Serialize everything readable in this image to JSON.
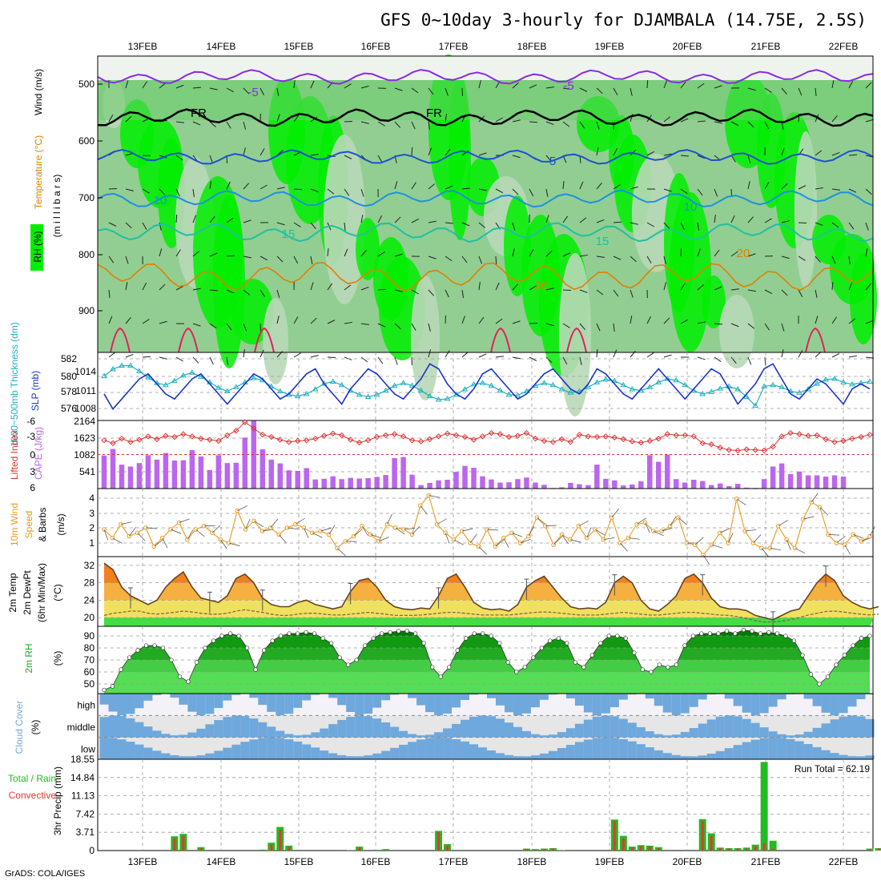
{
  "title": "GFS 0~10day 3-hourly for DJAMBALA (14.75E, 2.5S)",
  "credit": "GrADS: COLA/IGES",
  "x_labels": [
    "13FEB",
    "14FEB",
    "15FEB",
    "16FEB",
    "17FEB",
    "18FEB",
    "19FEB",
    "20FEB",
    "21FEB",
    "22FEB"
  ],
  "colors": {
    "rh_bright": "#00ee00",
    "rh_mid": "#66cc66",
    "rh_light": "#b8d8b8",
    "rh_grey": "#c8d0c8",
    "t_minus5": "#8a2be2",
    "t_zero": "#000000",
    "t_5": "#1e50d0",
    "t_10": "#1e90e0",
    "t_15": "#20c0a0",
    "t_20": "#e08000",
    "t_25": "#e02060",
    "thickness": "#20b0c0",
    "slp": "#1a33cc",
    "lifted_index": "#dd3333",
    "cape": "#bb66ee",
    "wind": "#e89a20",
    "temp_fill": "#f0e060",
    "temp_hot": "#f08020",
    "dewpt": "#886644",
    "rh_surface": "#22aa22",
    "cloud": "#6fa8dc",
    "cloud_bg": "#e6e6e6",
    "precip_total": "#22bb22",
    "precip_conv": "#ee3333"
  },
  "panels": {
    "upper_air": {
      "ylabels": [
        "Wind (m/s)",
        "Temperature (°C)",
        "RH (%)",
        "(m i l l i b a r s)"
      ],
      "yticks": [
        "500",
        "600",
        "700",
        "800",
        "900"
      ],
      "contour_labels": [
        "-5",
        "FR",
        "FR",
        "-5",
        "5",
        "10",
        "10",
        "15",
        "15",
        "20",
        "20"
      ]
    },
    "slp": {
      "ylabels": [
        "1000~500mb Thickness (dm)",
        "SLP (mb)"
      ],
      "left_ticks": [
        "582",
        "580",
        "578",
        "576"
      ],
      "right_ticks": [
        "1014",
        "1011",
        "1008"
      ]
    },
    "cape": {
      "ylabels": [
        "Lifted Index",
        "CAPE (J/kg)"
      ],
      "left_ticks": [
        "-6",
        "-3",
        "0",
        "3",
        "6"
      ],
      "right_ticks": [
        "2164",
        "1623",
        "1082",
        "541"
      ]
    },
    "wind": {
      "ylabels": [
        "10m Wind",
        "Speed",
        "& Barbs",
        "(m/s)"
      ],
      "ticks": [
        "4",
        "3",
        "2",
        "1"
      ]
    },
    "temp": {
      "ylabels": [
        "2m Temp",
        "2m DewPt",
        "(6hr Min/Max)",
        "(°C)"
      ],
      "ticks": [
        "32",
        "28",
        "24",
        "20"
      ]
    },
    "rh": {
      "ylabels": [
        "2m RH",
        "(%)"
      ],
      "ticks": [
        "90",
        "80",
        "70",
        "60",
        "50"
      ]
    },
    "cloud": {
      "ylabels": [
        "Cloud Cover",
        "(%)"
      ],
      "levels": [
        "high",
        "middle",
        "low"
      ]
    },
    "precip": {
      "ylabels": [
        "Total / Rain",
        "Convective",
        "3hr Precip (mm)"
      ],
      "ticks": [
        "18.55",
        "14.84",
        "11.13",
        "7.42",
        "3.71",
        "0"
      ],
      "run_total": "Run Total = 62.19"
    }
  },
  "chart_data": {
    "type": "meteogram",
    "title": "GFS 0~10day 3-hourly for DJAMBALA (14.75E, 2.5S)",
    "x_start": "12FEB 12Z",
    "x_step_hours": 3,
    "series": [
      {
        "name": "SLP",
        "unit": "mb",
        "ylim": [
          1006,
          1017
        ],
        "values": [
          1010,
          1007,
          1009,
          1011,
          1013,
          1014,
          1012,
          1010,
          1009,
          1011,
          1013,
          1014,
          1012,
          1010,
          1008,
          1010,
          1012,
          1014,
          1013,
          1011,
          1009,
          1010,
          1012,
          1014,
          1015,
          1012,
          1010,
          1008,
          1011,
          1013,
          1015,
          1014,
          1012,
          1010,
          1009,
          1011,
          1013,
          1016,
          1015,
          1012,
          1010,
          1009,
          1011,
          1014,
          1015,
          1013,
          1011,
          1009,
          1010,
          1012,
          1014,
          1015,
          1013,
          1011,
          1010,
          1012,
          1015,
          1014,
          1012,
          1010,
          1009,
          1011,
          1013,
          1015,
          1013,
          1011,
          1009,
          1011,
          1013,
          1015,
          1014,
          1011,
          1008,
          1010,
          1012,
          1015,
          1016,
          1013,
          1010,
          1009,
          1011,
          1013,
          1012,
          1010,
          1008,
          1011,
          1012,
          1011
        ]
      },
      {
        "name": "1000~500mb Thickness",
        "unit": "dm",
        "ylim": [
          575,
          583
        ],
        "values": [
          580.5,
          581.5,
          582,
          582,
          581.2,
          580.3,
          579.5,
          579.2,
          579.8,
          580.6,
          581,
          580.4,
          579.6,
          578.8,
          578.3,
          578.9,
          579.6,
          580.2,
          579.9,
          579,
          578.3,
          577.8,
          577.6,
          577.9,
          578.6,
          579.4,
          579.7,
          579.2,
          578.4,
          577.8,
          577.5,
          577.8,
          578.4,
          579.1,
          579.5,
          579.1,
          578.4,
          577.6,
          577.1,
          577.2,
          577.8,
          578.6,
          579.3,
          579.5,
          579.1,
          578.4,
          577.8,
          577.7,
          578.3,
          579.1,
          579.5,
          579.2,
          578.6,
          578.1,
          578.3,
          578.9,
          579.6,
          580,
          579.8,
          579.2,
          578.6,
          578.4,
          578.9,
          579.6,
          580.1,
          579.9,
          579.2,
          578.4,
          577.9,
          578.2,
          578.7,
          579,
          578.6,
          577.5,
          576.2,
          579,
          579.2,
          578.9,
          578.3,
          578.1,
          578.6,
          579.4,
          580,
          580.1,
          579.6,
          579.3,
          579.5,
          579.7
        ]
      },
      {
        "name": "Lifted Index",
        "unit": "K",
        "ylim": [
          6,
          -6
        ],
        "values": [
          -2.5,
          -2,
          -2.8,
          -2.2,
          -2.6,
          -3.2,
          -2.7,
          -3.3,
          -3.1,
          -3.6,
          -3.2,
          -2.8,
          -2.6,
          -2.4,
          -3.4,
          -4.2,
          -5.7,
          -4.6,
          -3.5,
          -3.1,
          -2.6,
          -2.2,
          -2.4,
          -2.5,
          -2.8,
          -3.3,
          -3.7,
          -3.4,
          -2.6,
          -2.1,
          -2.5,
          -3.1,
          -3.4,
          -3.6,
          -3.2,
          -2.5,
          -2.3,
          -2.7,
          -3.2,
          -3.7,
          -3.4,
          -3.1,
          -2.6,
          -3.2,
          -3.8,
          -3.6,
          -3.1,
          -3.3,
          -3.8,
          -2.8,
          -2.4,
          -2.2,
          -2.7,
          -2.2,
          -3.5,
          -3.2,
          -3.1,
          -3.2,
          -3,
          -2.7,
          -2.3,
          -2.1,
          -2.4,
          -2.8,
          -3.6,
          -3.4,
          -3.4,
          -3.2,
          -2,
          -1.8,
          -1.2,
          -0.8,
          -0.7,
          -0.9,
          -0.8,
          -0.7,
          -1.4,
          -3.2,
          -3.8,
          -3.6,
          -3.3,
          -3.4,
          -2.7,
          -2.2,
          -2.4,
          -2.8,
          -3.1,
          -3.5
        ]
      },
      {
        "name": "CAPE",
        "unit": "J/kg",
        "ylim": [
          0,
          2164
        ],
        "values": [
          1050,
          1260,
          760,
          700,
          810,
          1060,
          920,
          1130,
          890,
          900,
          1220,
          1020,
          590,
          1060,
          810,
          820,
          1620,
          2150,
          1250,
          920,
          800,
          580,
          560,
          650,
          290,
          310,
          390,
          300,
          340,
          320,
          330,
          370,
          430,
          970,
          1000,
          440,
          110,
          180,
          260,
          280,
          530,
          720,
          660,
          390,
          290,
          190,
          200,
          300,
          350,
          190,
          120,
          20,
          40,
          180,
          140,
          110,
          760,
          310,
          260,
          100,
          130,
          230,
          1060,
          850,
          1080,
          300,
          190,
          280,
          240,
          110,
          160,
          80,
          150,
          30,
          20,
          300,
          700,
          800,
          460,
          540,
          420,
          420,
          380,
          420,
          380
        ]
      },
      {
        "name": "10m Wind Speed",
        "unit": "m/s",
        "ylim": [
          0.5,
          4.5
        ],
        "values": [
          2.1,
          1.6,
          2.4,
          1.7,
          1.9,
          2.2,
          1.1,
          1.6,
          2.1,
          2.5,
          1.5,
          2.1,
          2.3,
          1.9,
          1.5,
          1.3,
          3.2,
          2.1,
          2.6,
          2.0,
          2.2,
          1.8,
          2.2,
          2.4,
          2.2,
          1.9,
          2.0,
          1.8,
          1.0,
          1.4,
          1.7,
          2.3,
          1.8,
          1.4,
          2.4,
          2.2,
          2.1,
          1.8,
          3.5,
          4.1,
          2.4,
          1.9,
          1.5,
          2.0,
          1.3,
          1.1,
          2.1,
          1.1,
          1.6,
          1.9,
          1.3,
          1.7,
          2.8,
          2.3,
          1.2,
          1.8,
          1.5,
          2.3,
          1.6,
          2.1,
          1.5,
          2.8,
          1.3,
          1.6,
          2.4,
          2.5,
          2.0,
          2.0,
          2.3,
          2.8,
          1.3,
          1.2,
          0.6,
          1.2,
          1.9,
          1.3,
          3.9,
          2.0,
          1.3,
          1.0,
          1.0,
          2.3,
          1.5,
          1.0,
          2.7,
          3.7,
          3.4,
          1.8,
          1.3,
          1.2,
          1.8,
          1.4,
          1.7
        ]
      },
      {
        "name": "2m Temp",
        "unit": "°C",
        "ylim": [
          18,
          34
        ],
        "values": [
          32.5,
          31,
          27,
          25,
          24,
          23,
          24,
          27,
          29,
          30.5,
          27,
          24.5,
          24,
          23.5,
          25,
          29,
          30,
          28,
          24.5,
          23,
          22.5,
          22.5,
          23.5,
          24,
          23,
          22.5,
          22,
          22.5,
          26,
          28.5,
          29,
          27,
          24,
          22.5,
          22,
          21.8,
          22.2,
          22,
          25,
          29,
          30,
          27,
          23.5,
          22.2,
          21.8,
          22,
          21.5,
          23,
          27,
          28.5,
          29.5,
          27,
          24.5,
          22.5,
          22,
          22.2,
          22,
          23.5,
          28,
          29.5,
          28,
          24,
          22,
          21.5,
          23,
          25,
          29,
          30,
          28,
          24.5,
          22.5,
          22,
          22,
          21.6,
          20.5,
          20,
          19.5,
          20.5,
          21.5,
          22,
          25,
          28,
          30,
          28.5,
          25,
          23.5,
          22.5,
          22,
          22.5
        ]
      },
      {
        "name": "2m DewPt",
        "unit": "°C",
        "ylim": [
          18,
          34
        ],
        "values": [
          20.5,
          21,
          21.2,
          21.5,
          21.5,
          21,
          20.8,
          21,
          21.2,
          21.5,
          21.3,
          21,
          20.8,
          20.8,
          21,
          21.5,
          21.8,
          21.5,
          21.2,
          20.8,
          20.5,
          20.5,
          20.8,
          21,
          21,
          20.8,
          20.6,
          20.6,
          20.8,
          21,
          21.2,
          21,
          20.8,
          20.5,
          20.5,
          20.5,
          20.6,
          20.8,
          21,
          21.2,
          21.2,
          21,
          20.8,
          20.6,
          20.6,
          20.6,
          20.6,
          20.8,
          21,
          21.2,
          21.3,
          21.2,
          21,
          20.8,
          20.6,
          20.6,
          20.6,
          20.8,
          21,
          21.2,
          21,
          20.8,
          20.6,
          20.6,
          20.8,
          21,
          21.2,
          21.2,
          21,
          20.8,
          20.6,
          20.5,
          20.2,
          19.8,
          19.3,
          19,
          19,
          19.2,
          19.5,
          20,
          20.6,
          21,
          21.4,
          21.5,
          21.3,
          21,
          20.8,
          20.6,
          20.8
        ]
      },
      {
        "name": "2m RH",
        "unit": "%",
        "ylim": [
          42,
          98
        ],
        "values": [
          45,
          48,
          62,
          72,
          78,
          82,
          82,
          80,
          70,
          56,
          52,
          68,
          80,
          86,
          90,
          92,
          90,
          80,
          62,
          78,
          86,
          90,
          92,
          92,
          93,
          92,
          88,
          84,
          72,
          66,
          70,
          82,
          88,
          92,
          93,
          94,
          94,
          92,
          84,
          64,
          56,
          64,
          78,
          88,
          92,
          92,
          90,
          84,
          68,
          60,
          64,
          72,
          80,
          86,
          88,
          84,
          68,
          64,
          74,
          84,
          90,
          90,
          88,
          76,
          62,
          60,
          66,
          64,
          66,
          82,
          90,
          92,
          92,
          92,
          94,
          92,
          95,
          94,
          92,
          93,
          92,
          90,
          86,
          74,
          58,
          50,
          56,
          66,
          74,
          82,
          88,
          90
        ]
      },
      {
        "name": "Total Precip",
        "unit": "mm",
        "ylim": [
          0,
          18.55
        ],
        "values": [
          0,
          0,
          0,
          0,
          0,
          0,
          0,
          0,
          2.9,
          3.4,
          0,
          0.7,
          0,
          0,
          0,
          0,
          0,
          0,
          0.2,
          1.6,
          4.8,
          1,
          0,
          0,
          0,
          0,
          0,
          0,
          0.1,
          0.8,
          0,
          0,
          0.3,
          0,
          0,
          0,
          0,
          0,
          4,
          1.3,
          0,
          0,
          0,
          0,
          0,
          0,
          0,
          0,
          0.4,
          0.3,
          0.4,
          0.5,
          0.1,
          0,
          0,
          0,
          0,
          0,
          6.3,
          3,
          0.8,
          1.1,
          1,
          0.7,
          0,
          0,
          0,
          0,
          6.4,
          3.5,
          0.6,
          0.5,
          0.5,
          0.6,
          1.2,
          18,
          2,
          0,
          0,
          0,
          0,
          0,
          0,
          0,
          0,
          0,
          0,
          0.4,
          0.5,
          0,
          0
        ]
      },
      {
        "name": "Convective Precip",
        "unit": "mm",
        "ylim": [
          0,
          18.55
        ],
        "values": [
          0,
          0,
          0,
          0,
          0,
          0,
          0,
          0,
          2.5,
          3,
          0,
          0.5,
          0,
          0,
          0,
          0,
          0,
          0,
          0.1,
          1.2,
          4.2,
          0.8,
          0,
          0,
          0,
          0,
          0,
          0,
          0.1,
          0.6,
          0,
          0,
          0.2,
          0,
          0,
          0,
          0,
          0,
          3.7,
          1,
          0,
          0,
          0,
          0,
          0,
          0,
          0,
          0,
          0.3,
          0.2,
          0.3,
          0.4,
          0.1,
          0,
          0,
          0,
          0,
          0,
          6,
          2.5,
          0.6,
          0.9,
          0.8,
          0.5,
          0,
          0,
          0,
          0,
          6,
          3,
          0.5,
          0.4,
          0.4,
          0.4,
          0.9,
          1.5,
          0.4,
          0,
          0,
          0,
          0,
          0,
          0,
          0,
          0,
          0,
          0,
          0.3,
          0.4,
          0,
          0
        ]
      }
    ]
  }
}
